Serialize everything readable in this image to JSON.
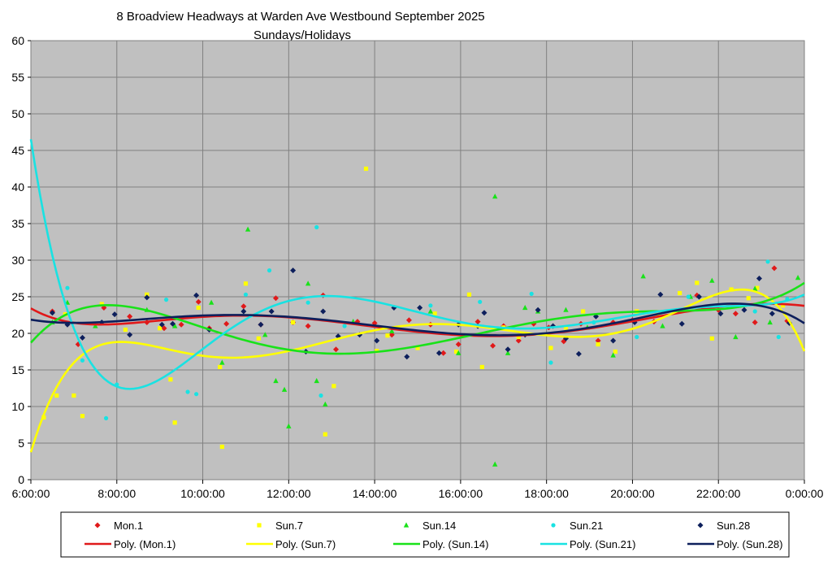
{
  "chart_data": {
    "type": "scatter",
    "title": "8 Broadview Headways at Warden Ave Westbound September 2025",
    "subtitle": "Sundays/Holidays",
    "xlabel": "",
    "ylabel": "",
    "xlim": [
      6,
      24
    ],
    "ylim": [
      0,
      60
    ],
    "y_ticks": [
      "0",
      "5",
      "10",
      "15",
      "20",
      "25",
      "30",
      "35",
      "40",
      "45",
      "50",
      "55",
      "60"
    ],
    "x_ticks": [
      "6:00:00",
      "8:00:00",
      "10:00:00",
      "12:00:00",
      "14:00:00",
      "16:00:00",
      "18:00:00",
      "20:00:00",
      "22:00:00",
      "0:00:00"
    ],
    "grid": true,
    "legend_position": "bottom",
    "series": [
      {
        "name": "Mon.1",
        "color": "#e0191a",
        "marker": "diamond",
        "trend_name": "Poly. (Mon.1)",
        "trend_color": "#e0191a",
        "points": [
          [
            6.5,
            23
          ],
          [
            7.1,
            18.5
          ],
          [
            7.7,
            23.5
          ],
          [
            8.3,
            22.3
          ],
          [
            8.7,
            21.5
          ],
          [
            9.1,
            20.7
          ],
          [
            9.5,
            21.2
          ],
          [
            9.9,
            24.3
          ],
          [
            10.15,
            20.7
          ],
          [
            10.55,
            21.3
          ],
          [
            10.95,
            23.7
          ],
          [
            11.35,
            21.2
          ],
          [
            11.7,
            24.8
          ],
          [
            12.1,
            21.5
          ],
          [
            12.45,
            21
          ],
          [
            12.8,
            25.2
          ],
          [
            13.1,
            17.8
          ],
          [
            13.6,
            21.6
          ],
          [
            14.0,
            21.4
          ],
          [
            14.4,
            19.8
          ],
          [
            14.8,
            21.8
          ],
          [
            15.3,
            21.2
          ],
          [
            15.6,
            17.3
          ],
          [
            15.95,
            18.5
          ],
          [
            16.4,
            21.6
          ],
          [
            16.75,
            18.3
          ],
          [
            17.0,
            21
          ],
          [
            17.35,
            19
          ],
          [
            17.7,
            21.3
          ],
          [
            18.05,
            20.8
          ],
          [
            18.4,
            18.9
          ],
          [
            18.8,
            21.3
          ],
          [
            19.2,
            19
          ],
          [
            19.55,
            21.5
          ],
          [
            20.0,
            21.8
          ],
          [
            20.5,
            21.6
          ],
          [
            21.0,
            23
          ],
          [
            21.5,
            25.2
          ],
          [
            22.0,
            23.2
          ],
          [
            22.4,
            22.7
          ],
          [
            22.85,
            21.5
          ],
          [
            23.3,
            28.9
          ],
          [
            23.6,
            21.7
          ]
        ]
      },
      {
        "name": "Sun.7",
        "color": "#ffff00",
        "marker": "square",
        "trend_name": "Poly. (Sun.7)",
        "trend_color": "#ffff00",
        "points": [
          [
            6.3,
            8.5
          ],
          [
            6.6,
            11.5
          ],
          [
            6.8,
            22.6
          ],
          [
            7.0,
            11.5
          ],
          [
            7.2,
            8.7
          ],
          [
            7.65,
            24
          ],
          [
            8.2,
            20.5
          ],
          [
            8.7,
            25.3
          ],
          [
            9.0,
            20.7
          ],
          [
            9.25,
            13.7
          ],
          [
            9.35,
            7.8
          ],
          [
            9.9,
            23.5
          ],
          [
            10.4,
            15.4
          ],
          [
            10.45,
            4.5
          ],
          [
            11.0,
            26.8
          ],
          [
            11.3,
            19.3
          ],
          [
            12.1,
            21.5
          ],
          [
            12.85,
            6.2
          ],
          [
            13.05,
            12.8
          ],
          [
            13.8,
            42.5
          ],
          [
            14.05,
            17.6
          ],
          [
            14.3,
            19.7
          ],
          [
            15.0,
            18
          ],
          [
            15.4,
            22.7
          ],
          [
            15.9,
            17.5
          ],
          [
            16.2,
            25.3
          ],
          [
            16.5,
            15.4
          ],
          [
            17.0,
            20.8
          ],
          [
            17.35,
            19.5
          ],
          [
            18.1,
            18
          ],
          [
            18.45,
            20.8
          ],
          [
            18.85,
            23
          ],
          [
            19.2,
            18.5
          ],
          [
            19.6,
            17.5
          ],
          [
            20.1,
            23
          ],
          [
            20.6,
            22.5
          ],
          [
            21.1,
            25.5
          ],
          [
            21.5,
            26.9
          ],
          [
            21.85,
            19.3
          ],
          [
            22.3,
            26
          ],
          [
            22.7,
            24.8
          ],
          [
            22.9,
            26.2
          ],
          [
            23.5,
            23.8
          ]
        ]
      },
      {
        "name": "Sun.14",
        "color": "#19e219",
        "marker": "triangle",
        "trend_name": "Poly. (Sun.14)",
        "trend_color": "#19e219",
        "points": [
          [
            6.5,
            21.5
          ],
          [
            6.85,
            24.2
          ],
          [
            7.5,
            21
          ],
          [
            8.7,
            23.2
          ],
          [
            9.35,
            21
          ],
          [
            10.2,
            24.2
          ],
          [
            10.45,
            16
          ],
          [
            11.05,
            34.2
          ],
          [
            11.45,
            19.8
          ],
          [
            11.7,
            13.5
          ],
          [
            11.9,
            12.3
          ],
          [
            12.0,
            7.3
          ],
          [
            12.45,
            26.8
          ],
          [
            12.65,
            13.5
          ],
          [
            12.85,
            10.3
          ],
          [
            13.5,
            21.6
          ],
          [
            14.4,
            20.3
          ],
          [
            15.3,
            23
          ],
          [
            15.95,
            17.3
          ],
          [
            16.8,
            38.7
          ],
          [
            16.8,
            2.1
          ],
          [
            17.1,
            17.3
          ],
          [
            17.5,
            23.5
          ],
          [
            17.8,
            23
          ],
          [
            18.45,
            23.2
          ],
          [
            18.95,
            20.8
          ],
          [
            19.55,
            17
          ],
          [
            20.25,
            27.8
          ],
          [
            20.7,
            21
          ],
          [
            21.35,
            25
          ],
          [
            21.85,
            27.2
          ],
          [
            22.4,
            19.5
          ],
          [
            22.85,
            26.1
          ],
          [
            23.2,
            21.5
          ],
          [
            23.85,
            27.6
          ]
        ]
      },
      {
        "name": "Sun.21",
        "color": "#19e2e2",
        "marker": "circle",
        "trend_name": "Poly. (Sun.21)",
        "trend_color": "#19e2e2",
        "points": [
          [
            6.85,
            26.2
          ],
          [
            7.2,
            16.3
          ],
          [
            7.75,
            8.4
          ],
          [
            8.0,
            13
          ],
          [
            9.15,
            24.6
          ],
          [
            9.65,
            12
          ],
          [
            9.85,
            11.7
          ],
          [
            11.0,
            25.3
          ],
          [
            11.55,
            28.6
          ],
          [
            12.45,
            24.2
          ],
          [
            12.65,
            34.5
          ],
          [
            12.75,
            11.5
          ],
          [
            13.3,
            21
          ],
          [
            15.3,
            23.8
          ],
          [
            16.45,
            24.3
          ],
          [
            17.65,
            25.4
          ],
          [
            18.1,
            16
          ],
          [
            19.1,
            21.5
          ],
          [
            20.1,
            19.5
          ],
          [
            21.3,
            25
          ],
          [
            22.85,
            23
          ],
          [
            23.15,
            29.8
          ],
          [
            23.4,
            19.5
          ],
          [
            23.6,
            24.7
          ]
        ]
      },
      {
        "name": "Sun.28",
        "color": "#0d1f5c",
        "marker": "diamond",
        "trend_name": "Poly. (Sun.28)",
        "trend_color": "#0d1f5c",
        "points": [
          [
            6.5,
            22.8
          ],
          [
            6.85,
            21.2
          ],
          [
            7.2,
            19.4
          ],
          [
            7.65,
            21.5
          ],
          [
            7.95,
            22.6
          ],
          [
            8.3,
            19.8
          ],
          [
            8.7,
            24.9
          ],
          [
            9.05,
            21.2
          ],
          [
            9.3,
            21.3
          ],
          [
            9.85,
            25.2
          ],
          [
            10.15,
            20.5
          ],
          [
            10.95,
            23
          ],
          [
            11.35,
            21.2
          ],
          [
            11.6,
            23
          ],
          [
            12.1,
            28.6
          ],
          [
            12.4,
            17.5
          ],
          [
            12.8,
            23
          ],
          [
            13.15,
            19.6
          ],
          [
            13.65,
            19.8
          ],
          [
            14.05,
            19
          ],
          [
            14.45,
            23.5
          ],
          [
            14.75,
            16.8
          ],
          [
            15.05,
            23.5
          ],
          [
            15.5,
            17.3
          ],
          [
            15.95,
            21.2
          ],
          [
            16.4,
            21
          ],
          [
            16.55,
            22.8
          ],
          [
            17.1,
            17.8
          ],
          [
            17.5,
            19.8
          ],
          [
            17.8,
            23.2
          ],
          [
            18.15,
            21
          ],
          [
            18.45,
            19.3
          ],
          [
            18.75,
            17.2
          ],
          [
            19.15,
            22.3
          ],
          [
            19.55,
            19
          ],
          [
            20.05,
            21.5
          ],
          [
            20.65,
            25.3
          ],
          [
            21.15,
            21.3
          ],
          [
            21.55,
            25
          ],
          [
            22.05,
            22.7
          ],
          [
            22.6,
            23.2
          ],
          [
            22.95,
            27.5
          ],
          [
            23.25,
            22.7
          ],
          [
            23.65,
            21.4
          ]
        ]
      }
    ]
  }
}
